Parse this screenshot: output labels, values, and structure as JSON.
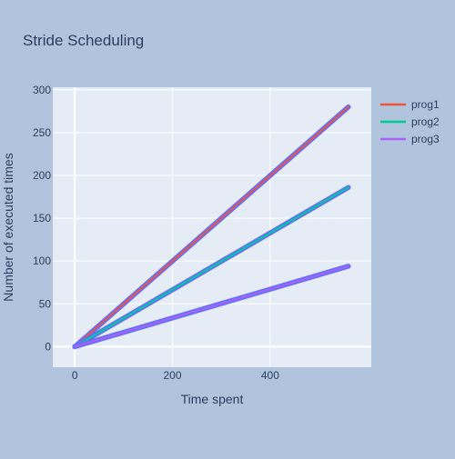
{
  "chart_data": {
    "type": "line",
    "title": "Stride Scheduling",
    "xlabel": "Time spent",
    "ylabel": "Number of executed times",
    "xlim": [
      -45,
      607
    ],
    "ylim": [
      -24,
      303
    ],
    "xticks": [
      0,
      200,
      400
    ],
    "yticks": [
      0,
      50,
      100,
      150,
      200,
      250,
      300
    ],
    "grid": true,
    "legend_position": "top-right",
    "series": [
      {
        "name": "prog1",
        "color": "#EF553B",
        "x": [
          0,
          560
        ],
        "y": [
          0,
          280
        ]
      },
      {
        "name": "prog2",
        "color": "#00CC96",
        "x": [
          0,
          560
        ],
        "y": [
          0,
          186
        ]
      },
      {
        "name": "prog3",
        "color": "#AB63FA",
        "x": [
          0,
          560
        ],
        "y": [
          0,
          94
        ]
      }
    ],
    "overlay_color": "#636EFA",
    "plot_bgcolor": "#E5ECF6",
    "paper_bgcolor": "#B0C4DE"
  }
}
